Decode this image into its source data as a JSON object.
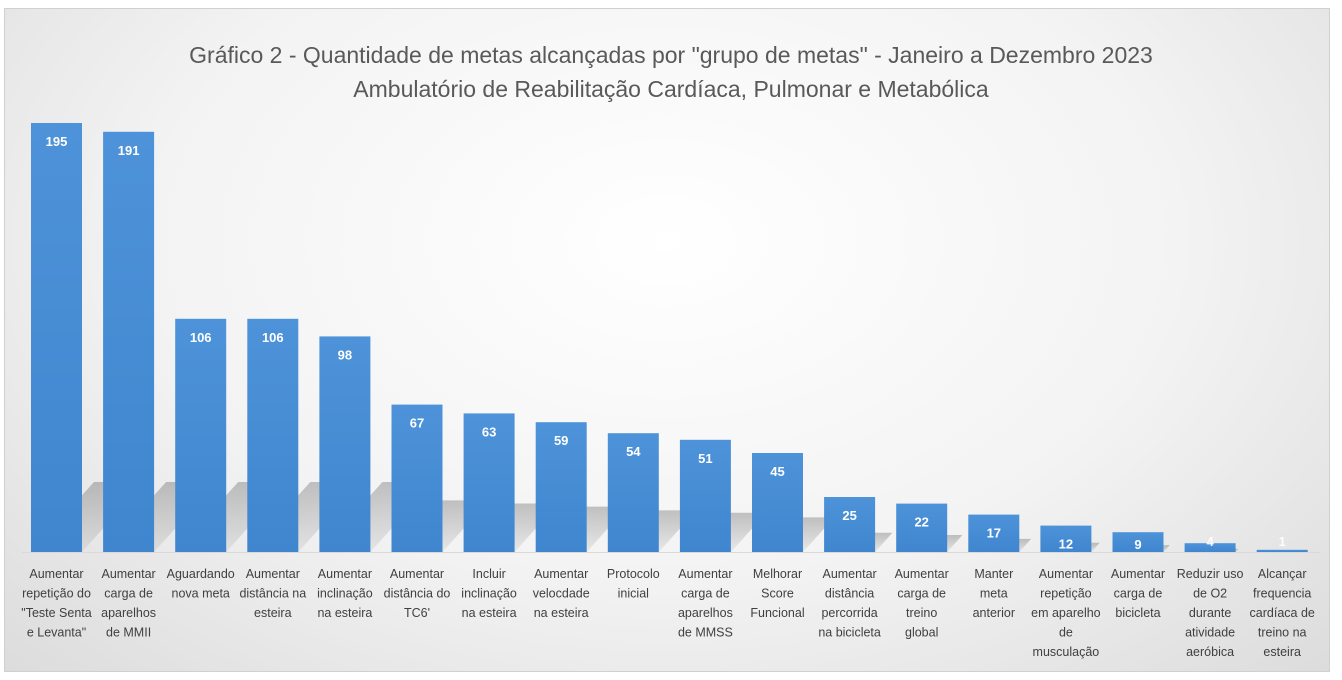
{
  "chart_data": {
    "type": "bar",
    "title": "Gráfico 2 - Quantidade de metas alcançadas por \"grupo de metas\" - Janeiro a Dezembro 2023",
    "subtitle": "Ambulatório de Reabilitação Cardíaca, Pulmonar e Metabólica",
    "xlabel": "",
    "ylabel": "",
    "ylim": [
      0,
      195
    ],
    "grid": false,
    "legend": "none",
    "bar_color": "#4a8fd6",
    "label_color": "#ffffff",
    "categories": [
      "Aumentar repetição do \"Teste Senta e Levanta\"",
      "Aumentar carga de aparelhos de MMII",
      "Aguardando nova meta",
      "Aumentar distância na esteira",
      "Aumentar inclinação na esteira",
      "Aumentar distância do TC6'",
      "Incluir inclinação na esteira",
      "Aumentar velocdade na esteira",
      "Protocolo inicial",
      "Aumentar carga de aparelhos de MMSS",
      "Melhorar Score Funcional",
      "Aumentar distância percorrida na bicicleta",
      "Aumentar carga de treino global",
      "Manter meta anterior",
      "Aumentar repetição em aparelho de musculação",
      "Aumentar carga de bicicleta",
      "Reduzir uso de O2 durante atividade aeróbica",
      "Alcançar frequencia cardíaca de treino na esteira"
    ],
    "category_lines": [
      [
        "Aumentar",
        "repetição do",
        "\"Teste Senta",
        "e Levanta\""
      ],
      [
        "Aumentar",
        "carga de",
        "aparelhos",
        "de MMII"
      ],
      [
        "Aguardando",
        "nova meta"
      ],
      [
        "Aumentar",
        "distância na",
        "esteira"
      ],
      [
        "Aumentar",
        "inclinação",
        "na esteira"
      ],
      [
        "Aumentar",
        "distância do",
        "TC6'"
      ],
      [
        "Incluir",
        "inclinação",
        "na esteira"
      ],
      [
        "Aumentar",
        "velocdade",
        "na esteira"
      ],
      [
        "Protocolo",
        "inicial"
      ],
      [
        "Aumentar",
        "carga de",
        "aparelhos",
        "de MMSS"
      ],
      [
        "Melhorar",
        "Score",
        "Funcional"
      ],
      [
        "Aumentar",
        "distância",
        "percorrida",
        "na bicicleta"
      ],
      [
        "Aumentar",
        "carga de",
        "treino",
        "global"
      ],
      [
        "Manter",
        "meta",
        "anterior"
      ],
      [
        "Aumentar",
        "repetição",
        "em aparelho",
        "de",
        "musculação"
      ],
      [
        "Aumentar",
        "carga de",
        "bicicleta"
      ],
      [
        "Reduzir uso",
        "de O2",
        "durante",
        "atividade",
        "aeróbica"
      ],
      [
        "Alcançar",
        "frequencia",
        "cardíaca de",
        "treino na",
        "esteira"
      ]
    ],
    "values": [
      195,
      191,
      106,
      106,
      98,
      67,
      63,
      59,
      54,
      51,
      45,
      25,
      22,
      17,
      12,
      9,
      4,
      1
    ]
  }
}
